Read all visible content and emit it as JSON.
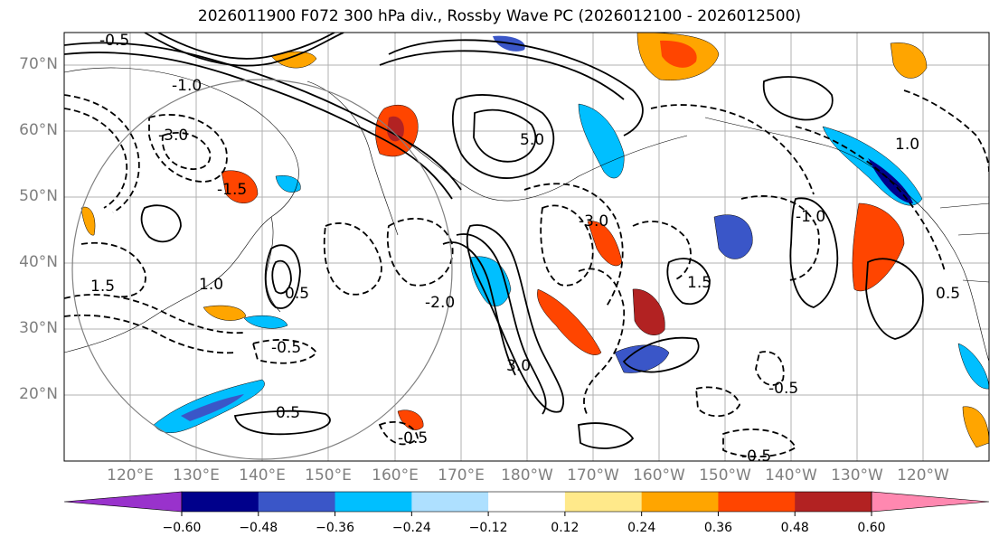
{
  "title": "2026011900 F072 300 hPa div., Rossby Wave PC (2026012100 - 2026012500)",
  "map": {
    "lat_labels": [
      "70°N",
      "60°N",
      "50°N",
      "40°N",
      "30°N",
      "20°N"
    ],
    "lon_labels": [
      "120°E",
      "130°E",
      "140°E",
      "150°E",
      "160°E",
      "170°E",
      "180°W",
      "170°W",
      "160°W",
      "150°W",
      "140°W",
      "130°W",
      "120°W"
    ],
    "contour_labels": [
      "-0.5",
      "-1.0",
      "-1.5",
      "-3.0",
      "-2.0",
      "0.5",
      "1.0",
      "1.5",
      "3.0",
      "5.0",
      "-0.5",
      "0.5",
      "-0.5",
      "1.5",
      "-3.0",
      "-1.0",
      "-0.5",
      "-0.5",
      "1.0",
      "0.5"
    ]
  },
  "colorbar": {
    "colors": [
      "#9932cc",
      "#00008b",
      "#3a56c8",
      "#00bfff",
      "#aee0ff",
      "#ffffff",
      "#ffe98a",
      "#ffa500",
      "#ff4500",
      "#b22222",
      "#ff88b0"
    ],
    "tick_labels": [
      "−0.60",
      "−0.48",
      "−0.36",
      "−0.24",
      "−0.12",
      "0.12",
      "0.24",
      "0.36",
      "0.48",
      "0.60"
    ]
  }
}
